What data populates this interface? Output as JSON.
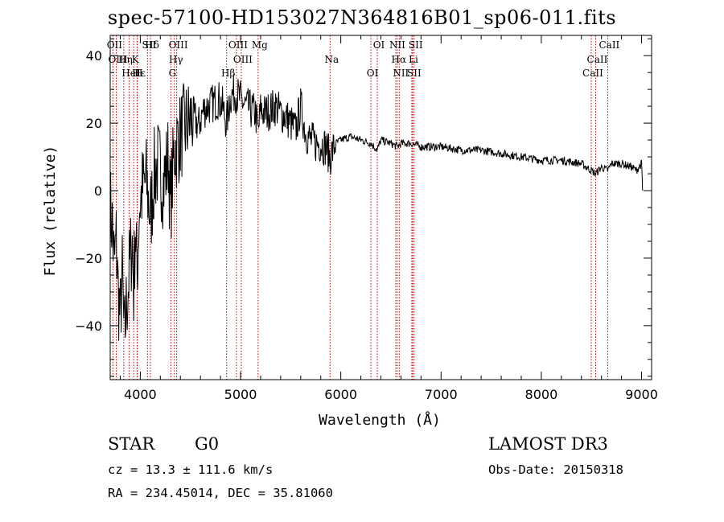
{
  "chart_data": {
    "type": "line",
    "title": "spec-57100-HD153027N364816B01_sp06-011.fits",
    "xlabel": "Wavelength (Å)",
    "ylabel": "Flux (relative)",
    "xlim": [
      3700,
      9100
    ],
    "ylim": [
      -56,
      46
    ],
    "x_ticks": [
      4000,
      5000,
      6000,
      7000,
      8000,
      9000
    ],
    "y_ticks": [
      -40,
      -20,
      0,
      20,
      40
    ],
    "grid": false,
    "series": [
      {
        "name": "spectrum",
        "x": [
          3700,
          3720,
          3740,
          3760,
          3780,
          3800,
          3820,
          3840,
          3860,
          3880,
          3900,
          3920,
          3935,
          3950,
          3968,
          3990,
          4020,
          4060,
          4101,
          4140,
          4180,
          4230,
          4280,
          4300,
          4340,
          4380,
          4430,
          4480,
          4530,
          4580,
          4630,
          4680,
          4730,
          4780,
          4820,
          4861,
          4900,
          4950,
          5000,
          5050,
          5100,
          5150,
          5175,
          5200,
          5250,
          5300,
          5350,
          5400,
          5450,
          5500,
          5550,
          5600,
          5650,
          5700,
          5750,
          5800,
          5850,
          5893,
          5950,
          6000,
          6100,
          6200,
          6300,
          6364,
          6400,
          6500,
          6563,
          6600,
          6700,
          6800,
          6900,
          7000,
          7200,
          7400,
          7600,
          7800,
          8000,
          8200,
          8400,
          8498,
          8542,
          8600,
          8662,
          8700,
          8800,
          8900,
          8950,
          9000,
          9010
        ],
        "y": [
          -5,
          -10,
          -22,
          -15,
          -30,
          -38,
          -25,
          -45,
          -35,
          -28,
          -20,
          -15,
          -30,
          -10,
          -25,
          -5,
          0,
          3,
          -8,
          5,
          8,
          2,
          10,
          -5,
          12,
          15,
          18,
          20,
          22,
          19,
          24,
          25,
          26,
          27,
          25,
          20,
          28,
          29,
          27,
          25,
          24,
          23,
          17,
          24,
          23,
          24,
          25,
          23,
          22,
          20,
          18,
          25,
          17,
          15,
          14,
          14,
          13,
          10,
          14,
          15,
          16,
          15,
          14,
          12,
          15,
          14,
          13,
          14,
          14,
          13,
          13,
          13,
          12,
          12,
          11,
          10,
          9,
          9,
          8,
          6,
          5,
          7,
          6,
          8,
          8,
          7,
          6,
          8,
          0
        ]
      }
    ],
    "line_markers": [
      {
        "label": "Hδ",
        "x": 4101
      },
      {
        "label": "K",
        "x": 3934
      },
      {
        "label": "Hε",
        "x": 3970
      },
      {
        "label": "OII",
        "x": 3727
      },
      {
        "label": "OIII",
        "x": 3760
      },
      {
        "label": "HeI",
        "x": 3888
      },
      {
        "label": "SII",
        "x": 4072
      },
      {
        "label": "Hη",
        "x": 3835
      },
      {
        "label": "H",
        "x": 3968
      },
      {
        "label": "OIII",
        "x": 4363
      },
      {
        "label": "Hγ",
        "x": 4340
      },
      {
        "label": "G",
        "x": 4305
      },
      {
        "label": "OIII",
        "x": 4959
      },
      {
        "label": "OIII",
        "x": 5007
      },
      {
        "label": "Hβ",
        "x": 4861
      },
      {
        "label": "Mg",
        "x": 5175
      },
      {
        "label": "Na",
        "x": 5893
      },
      {
        "label": "OI",
        "x": 6300
      },
      {
        "label": "OI",
        "x": 6364
      },
      {
        "label": "Hα",
        "x": 6563
      },
      {
        "label": "SII",
        "x": 6716
      },
      {
        "label": "NII",
        "x": 6548
      },
      {
        "label": "Li",
        "x": 6708
      },
      {
        "label": "NII",
        "x": 6583
      },
      {
        "label": "SII",
        "x": 6731
      },
      {
        "label": "CaII",
        "x": 8542
      },
      {
        "label": "CaII",
        "x": 8498
      },
      {
        "label": "CaII",
        "x": 8662
      }
    ]
  },
  "info": {
    "class": "STAR",
    "subclass": "G0",
    "survey": "LAMOST DR3",
    "redshift": "cz = 13.3 ± 111.6 km/s",
    "obs_date": "Obs-Date: 20150318",
    "coords": "RA = 234.45014, DEC =  35.81060"
  }
}
